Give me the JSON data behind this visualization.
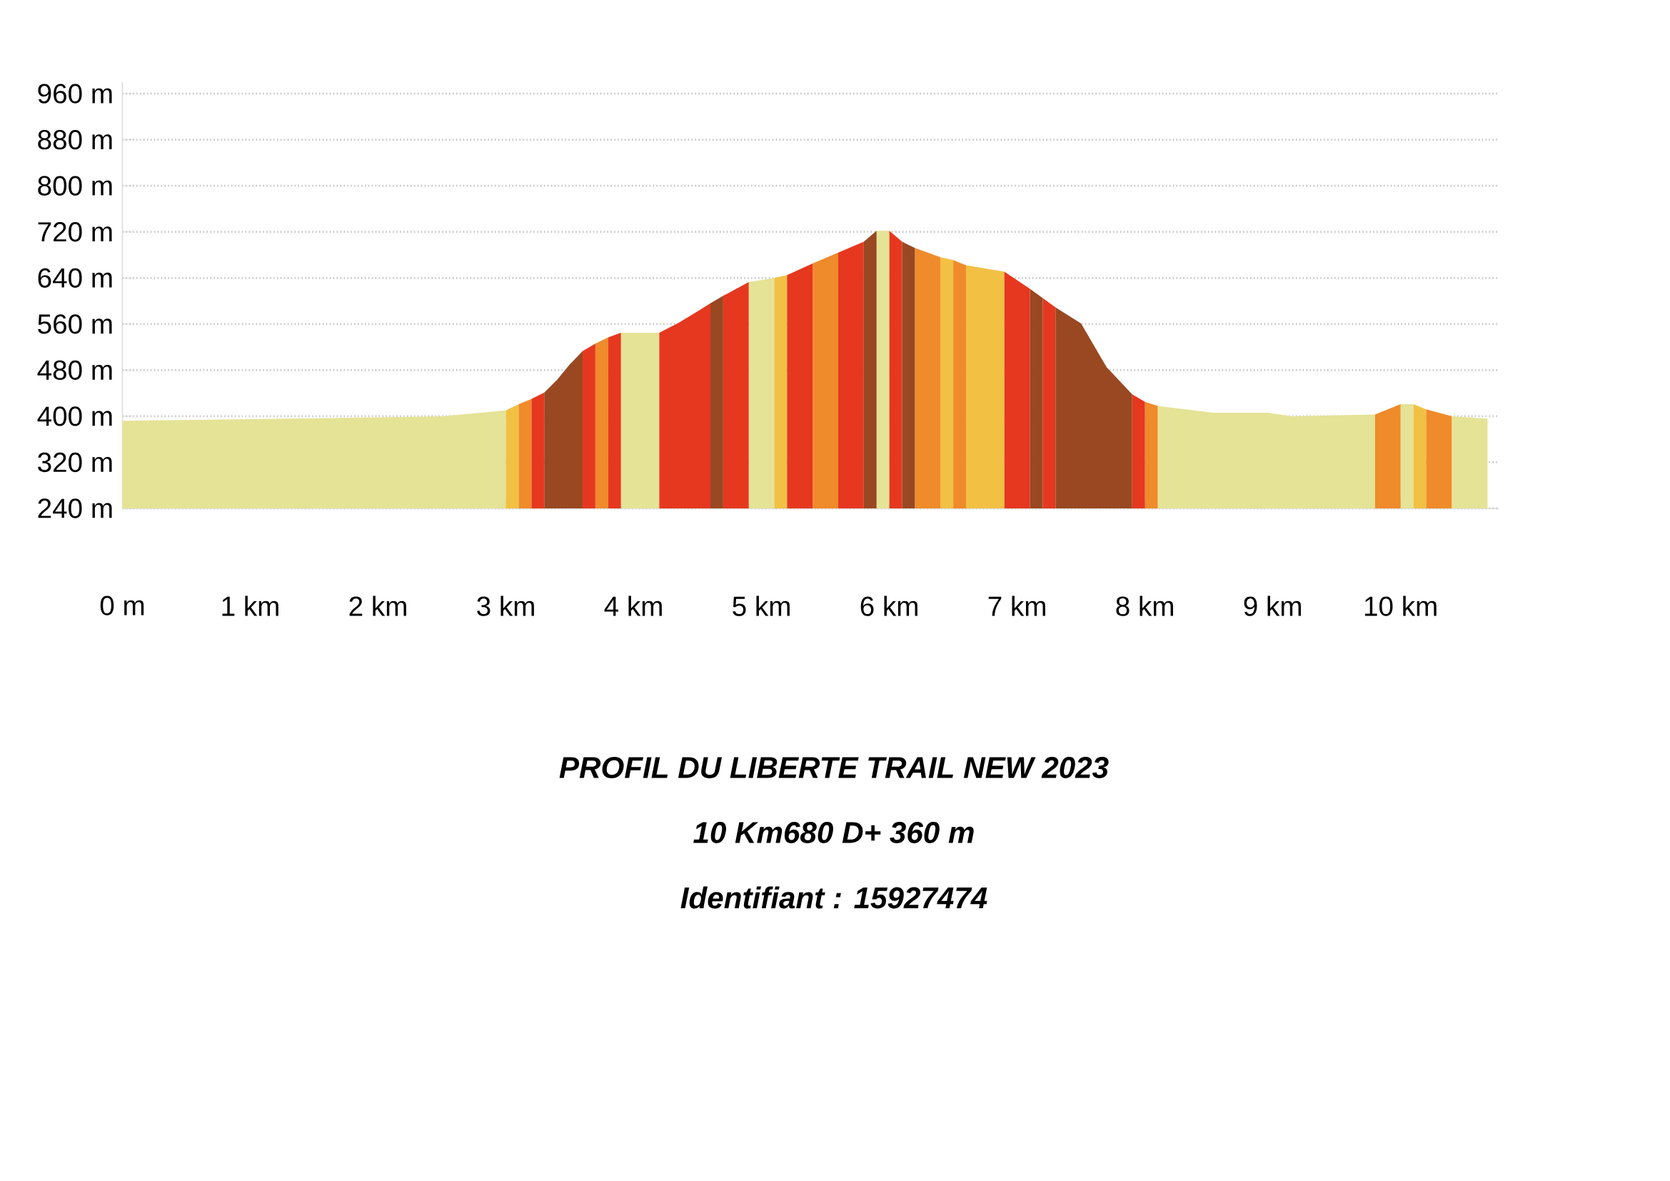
{
  "chart_data": {
    "type": "area",
    "title": "PROFIL DU LIBERTE TRAIL  NEW 2023",
    "subtitle": "10 Km680   D+ 360 m",
    "annotations": [
      "Identifiant : 15927474"
    ],
    "series": [
      {
        "color": "#e5e396",
        "x": [
          0,
          1,
          2,
          2.5,
          3.0,
          3.45,
          3.9,
          4.2,
          4.55,
          4.9,
          5.1,
          5.5,
          5.9,
          6.0,
          7.05,
          8.1,
          8.53,
          8.96,
          9.15,
          9.8,
          9.9,
          10.0,
          10.1,
          10.25,
          10.4,
          10.68
        ],
        "values": [
          392,
          395,
          398,
          400,
          410,
          null,
          545,
          545,
          null,
          633,
          640,
          null,
          722,
          722,
          null,
          418,
          406,
          406,
          400,
          403,
          null,
          421,
          421,
          null,
          400,
          396
        ]
      },
      {
        "color": "#f2c043",
        "x": [
          3.0,
          3.1,
          4.1,
          5.1,
          5.2,
          5.8,
          6.4,
          6.5,
          6.55,
          6.6,
          6.9,
          8.5,
          10.1,
          10.2
        ],
        "values": [
          410,
          421,
          null,
          640,
          645,
          null,
          676,
          671,
          null,
          662,
          651,
          null,
          421,
          412
        ]
      },
      {
        "color": "#ef8b2a",
        "x": [
          3.1,
          3.2,
          3.45,
          3.7,
          3.8,
          4.6,
          5.4,
          5.6,
          5.9,
          6.2,
          6.4,
          6.45,
          6.5,
          6.6,
          7.3,
          8.0,
          8.1,
          8.95,
          9.8,
          10.0,
          10.1,
          10.2,
          10.4
        ],
        "values": [
          421,
          430,
          null,
          526,
          537,
          null,
          665,
          684,
          null,
          692,
          676,
          null,
          671,
          662,
          null,
          425,
          418,
          null,
          403,
          421,
          null,
          412,
          400
        ]
      },
      {
        "color": "#e5381f",
        "x": [
          3.2,
          3.3,
          3.45,
          3.6,
          3.7,
          3.75,
          3.8,
          3.9,
          4.05,
          4.2,
          4.35,
          4.5,
          4.6,
          4.65,
          4.7,
          4.9,
          5.05,
          5.2,
          5.4,
          5.5,
          5.6,
          5.8,
          5.9,
          6.0,
          6.1,
          6.5,
          6.9,
          7.1,
          7.15,
          7.2,
          7.3,
          7.6,
          7.9,
          8.0
        ],
        "values": [
          430,
          441,
          null,
          513,
          526,
          null,
          537,
          545,
          null,
          545,
          562,
          582,
          596,
          null,
          609,
          633,
          null,
          645,
          665,
          null,
          684,
          703,
          null,
          722,
          703,
          null,
          651,
          621,
          null,
          605,
          589,
          null,
          438,
          425
        ]
      },
      {
        "color": "#994822",
        "x": [
          3.3,
          3.4,
          3.5,
          3.6,
          4.1,
          4.6,
          4.7,
          5.25,
          5.8,
          5.9,
          6.0,
          6.1,
          6.2,
          6.65,
          7.1,
          7.2,
          7.25,
          7.3,
          7.5,
          7.7,
          7.9
        ],
        "values": [
          441,
          463,
          490,
          513,
          null,
          596,
          609,
          null,
          703,
          722,
          null,
          703,
          692,
          null,
          621,
          605,
          null,
          589,
          561,
          485,
          438
        ]
      }
    ],
    "xlim": [
      0,
      10.77
    ],
    "xticks": [
      {
        "value": 0,
        "label": "0 m"
      },
      {
        "value": 1,
        "label": "1 km"
      },
      {
        "value": 2,
        "label": "2 km"
      },
      {
        "value": 3,
        "label": "3 km"
      },
      {
        "value": 4,
        "label": "4 km"
      },
      {
        "value": 5,
        "label": "5 km"
      },
      {
        "value": 6,
        "label": "6 km"
      },
      {
        "value": 7,
        "label": "7 km"
      },
      {
        "value": 8,
        "label": "8 km"
      },
      {
        "value": 9,
        "label": "9 km"
      },
      {
        "value": 10,
        "label": "10 km"
      }
    ],
    "ylim": [
      240,
      980
    ],
    "yticks": [
      {
        "value": 240,
        "label": "240 m"
      },
      {
        "value": 320,
        "label": "320 m"
      },
      {
        "value": 400,
        "label": "400 m"
      },
      {
        "value": 480,
        "label": "480 m"
      },
      {
        "value": 560,
        "label": "560 m"
      },
      {
        "value": 640,
        "label": "640 m"
      },
      {
        "value": 720,
        "label": "720 m"
      },
      {
        "value": 800,
        "label": "800 m"
      },
      {
        "value": 880,
        "label": "880 m"
      },
      {
        "value": 960,
        "label": "960 m"
      }
    ],
    "grid": "y"
  }
}
